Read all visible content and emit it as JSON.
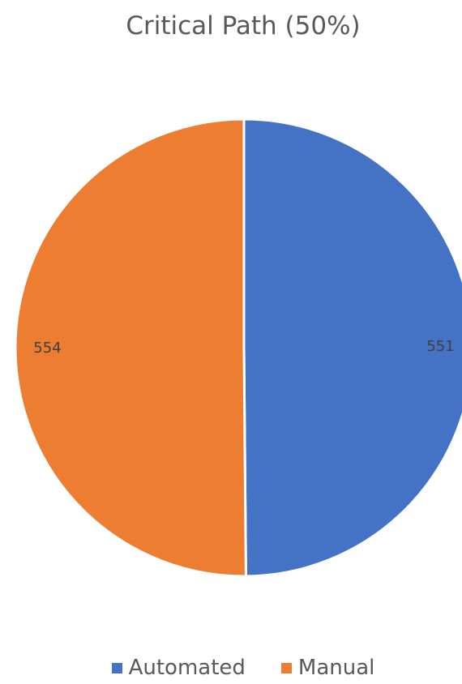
{
  "chart_data": {
    "type": "pie",
    "title": "Critical Path (50%)",
    "categories": [
      "Automated",
      "Manual"
    ],
    "values": [
      551,
      554
    ],
    "colors": [
      "#4472C4",
      "#ED7D31"
    ],
    "data_labels": [
      "551",
      "554"
    ],
    "legend_position": "bottom"
  }
}
